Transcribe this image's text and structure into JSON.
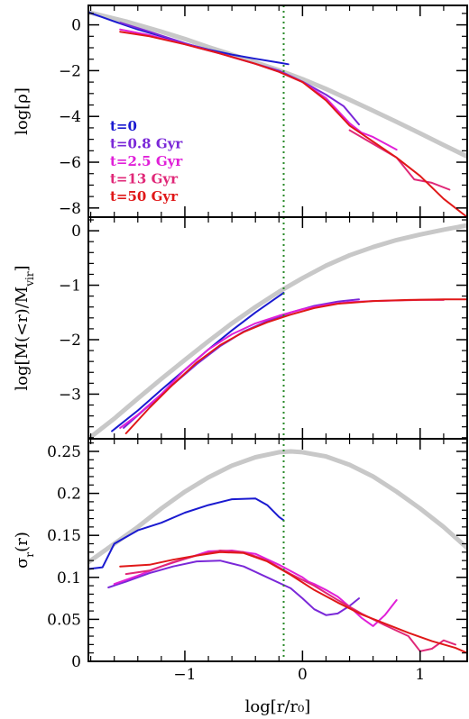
{
  "chart_data": [
    {
      "type": "line",
      "panel": "top",
      "ylabel": "log[ρ]",
      "xlabel": "",
      "xlim": [
        -1.82,
        1.4
      ],
      "ylim": [
        -8.4,
        0.85
      ],
      "xticks": [
        -1,
        0,
        1
      ],
      "xtick_labels": [
        "",
        "",
        ""
      ],
      "yticks": [
        0,
        -2,
        -4,
        -6,
        -8
      ],
      "ytick_labels": [
        "0",
        "−2",
        "−4",
        "−6",
        "−8"
      ],
      "vline_x": -0.16,
      "legend": {
        "position": "left-middle",
        "entries": [
          {
            "label": "t=0",
            "color": "#1a1ad0"
          },
          {
            "label": "t=0.8 Gyr",
            "color": "#7a28d8"
          },
          {
            "label": "t=2.5 Gyr",
            "color": "#e020d8"
          },
          {
            "label": "t=13 Gyr",
            "color": "#e02878"
          },
          {
            "label": "t=50 Gyr",
            "color": "#e01818"
          }
        ]
      },
      "series": [
        {
          "color": "#c8c8c8",
          "width": 5,
          "x": [
            -1.82,
            -1.5,
            -1.2,
            -1.0,
            -0.8,
            -0.6,
            -0.4,
            -0.2,
            0.0,
            0.2,
            0.4,
            0.6,
            0.8,
            1.0,
            1.2,
            1.4
          ],
          "y": [
            0.55,
            0.15,
            -0.3,
            -0.62,
            -0.97,
            -1.3,
            -1.64,
            -1.98,
            -2.37,
            -2.8,
            -3.27,
            -3.75,
            -4.24,
            -4.74,
            -5.25,
            -5.75
          ]
        },
        {
          "color": "#1a1ad0",
          "width": 2,
          "x": [
            -1.82,
            -1.6,
            -1.4,
            -1.2,
            -1.0,
            -0.8,
            -0.6,
            -0.4,
            -0.2,
            -0.12
          ],
          "y": [
            0.55,
            0.15,
            -0.2,
            -0.5,
            -0.82,
            -1.08,
            -1.3,
            -1.48,
            -1.65,
            -1.72
          ]
        },
        {
          "color": "#7a28d8",
          "width": 2,
          "x": [
            -1.55,
            -1.3,
            -1.0,
            -0.7,
            -0.4,
            -0.2,
            0.0,
            0.2,
            0.35,
            0.48
          ],
          "y": [
            0.1,
            -0.3,
            -0.8,
            -1.25,
            -1.7,
            -2.0,
            -2.48,
            -3.05,
            -3.55,
            -4.35
          ]
        },
        {
          "color": "#e020d8",
          "width": 2,
          "x": [
            -1.55,
            -1.3,
            -1.0,
            -0.7,
            -0.4,
            -0.2,
            0.0,
            0.2,
            0.4,
            0.5,
            0.6,
            0.8
          ],
          "y": [
            -0.2,
            -0.45,
            -0.85,
            -1.25,
            -1.7,
            -2.05,
            -2.5,
            -3.2,
            -4.3,
            -4.7,
            -4.9,
            -5.45
          ]
        },
        {
          "color": "#e02878",
          "width": 2,
          "x": [
            0.4,
            0.6,
            0.8,
            0.95,
            1.1,
            1.25
          ],
          "y": [
            -4.6,
            -5.2,
            -5.8,
            -6.75,
            -6.9,
            -7.2
          ]
        },
        {
          "color": "#e01818",
          "width": 2,
          "x": [
            -1.55,
            -1.3,
            -1.0,
            -0.7,
            -0.4,
            -0.2,
            0.0,
            0.2,
            0.4,
            0.6,
            0.8,
            1.0,
            1.2,
            1.4
          ],
          "y": [
            -0.3,
            -0.5,
            -0.85,
            -1.25,
            -1.7,
            -2.05,
            -2.5,
            -3.3,
            -4.4,
            -5.1,
            -5.8,
            -6.6,
            -7.6,
            -8.4
          ]
        }
      ]
    },
    {
      "type": "line",
      "panel": "middle",
      "ylabel": "log[M(<r)/M",
      "ylabel_sub": "vir",
      "ylabel_tail": "]",
      "xlabel": "",
      "xlim": [
        -1.82,
        1.4
      ],
      "ylim": [
        -3.82,
        0.25
      ],
      "xticks": [
        -1,
        0,
        1
      ],
      "xtick_labels": [
        "",
        "",
        ""
      ],
      "yticks": [
        0,
        -1,
        -2,
        -3
      ],
      "ytick_labels": [
        "0",
        "−1",
        "−2",
        "−3"
      ],
      "vline_x": -0.16,
      "series": [
        {
          "color": "#c8c8c8",
          "width": 5,
          "x": [
            -1.82,
            -1.6,
            -1.4,
            -1.2,
            -1.0,
            -0.8,
            -0.6,
            -0.4,
            -0.2,
            0.0,
            0.2,
            0.4,
            0.6,
            0.8,
            1.0,
            1.2,
            1.4
          ],
          "y": [
            -3.82,
            -3.45,
            -3.08,
            -2.72,
            -2.37,
            -2.03,
            -1.7,
            -1.4,
            -1.12,
            -0.87,
            -0.64,
            -0.45,
            -0.3,
            -0.17,
            -0.07,
            0.02,
            0.1
          ]
        },
        {
          "color": "#1a1ad0",
          "width": 2,
          "x": [
            -1.62,
            -1.4,
            -1.2,
            -1.0,
            -0.8,
            -0.6,
            -0.4,
            -0.2,
            -0.16
          ],
          "y": [
            -3.68,
            -3.3,
            -2.92,
            -2.55,
            -2.18,
            -1.83,
            -1.5,
            -1.2,
            -1.14
          ]
        },
        {
          "color": "#7a28d8",
          "width": 2,
          "x": [
            -1.52,
            -1.3,
            -1.1,
            -0.9,
            -0.7,
            -0.5,
            -0.3,
            -0.1,
            0.1,
            0.3,
            0.48
          ],
          "y": [
            -3.62,
            -3.2,
            -2.82,
            -2.45,
            -2.12,
            -1.85,
            -1.66,
            -1.5,
            -1.38,
            -1.3,
            -1.26
          ]
        },
        {
          "color": "#e020d8",
          "width": 2,
          "x": [
            -1.55,
            -1.4,
            -1.2,
            -1.0,
            -0.8,
            -0.6,
            -0.4,
            -0.2,
            0.0,
            0.2,
            0.4,
            0.6,
            0.8
          ],
          "y": [
            -3.62,
            -3.38,
            -3.0,
            -2.55,
            -2.18,
            -1.9,
            -1.7,
            -1.56,
            -1.44,
            -1.36,
            -1.31,
            -1.29,
            -1.28
          ]
        },
        {
          "color": "#e02878",
          "width": 2,
          "x": [
            0.8,
            1.0,
            1.2
          ],
          "y": [
            -1.28,
            -1.27,
            -1.27
          ]
        },
        {
          "color": "#e01818",
          "width": 2,
          "x": [
            -1.5,
            -1.3,
            -1.1,
            -0.9,
            -0.7,
            -0.5,
            -0.3,
            -0.1,
            0.1,
            0.3,
            0.6,
            0.9,
            1.2,
            1.4
          ],
          "y": [
            -3.72,
            -3.25,
            -2.82,
            -2.42,
            -2.1,
            -1.86,
            -1.68,
            -1.54,
            -1.42,
            -1.34,
            -1.29,
            -1.27,
            -1.26,
            -1.26
          ]
        }
      ]
    },
    {
      "type": "line",
      "panel": "bottom",
      "ylabel": "σ",
      "ylabel_sub": "r",
      "ylabel_tail": "(r)",
      "xlabel": "log[r/r₀]",
      "xlim": [
        -1.82,
        1.4
      ],
      "ylim": [
        0,
        0.265
      ],
      "xticks": [
        -1,
        0,
        1
      ],
      "xtick_labels": [
        "−1",
        "0",
        "1"
      ],
      "yticks": [
        0,
        0.05,
        0.1,
        0.15,
        0.2,
        0.25
      ],
      "ytick_labels": [
        "0",
        "0.05",
        "0.1",
        "0.15",
        "0.2",
        "0.25"
      ],
      "vline_x": -0.16,
      "series": [
        {
          "color": "#c8c8c8",
          "width": 5,
          "x": [
            -1.82,
            -1.6,
            -1.4,
            -1.2,
            -1.0,
            -0.8,
            -0.6,
            -0.4,
            -0.2,
            -0.1,
            0.0,
            0.2,
            0.4,
            0.6,
            0.8,
            1.0,
            1.2,
            1.4
          ],
          "y": [
            0.118,
            0.14,
            0.16,
            0.182,
            0.202,
            0.219,
            0.233,
            0.243,
            0.249,
            0.25,
            0.249,
            0.244,
            0.234,
            0.22,
            0.202,
            0.182,
            0.16,
            0.135
          ]
        },
        {
          "color": "#1a1ad0",
          "width": 2,
          "x": [
            -1.82,
            -1.7,
            -1.6,
            -1.4,
            -1.2,
            -1.0,
            -0.8,
            -0.6,
            -0.4,
            -0.3,
            -0.2,
            -0.16
          ],
          "y": [
            0.11,
            0.112,
            0.14,
            0.156,
            0.165,
            0.177,
            0.186,
            0.193,
            0.194,
            0.186,
            0.172,
            0.168
          ]
        },
        {
          "color": "#7a28d8",
          "width": 2,
          "x": [
            -1.65,
            -1.5,
            -1.3,
            -1.1,
            -0.9,
            -0.7,
            -0.5,
            -0.3,
            -0.1,
            0.0,
            0.1,
            0.2,
            0.3,
            0.4,
            0.48
          ],
          "y": [
            0.088,
            0.095,
            0.105,
            0.113,
            0.119,
            0.12,
            0.113,
            0.1,
            0.087,
            0.075,
            0.062,
            0.055,
            0.057,
            0.066,
            0.075
          ]
        },
        {
          "color": "#e020d8",
          "width": 2,
          "x": [
            -1.6,
            -1.4,
            -1.2,
            -1.0,
            -0.8,
            -0.6,
            -0.4,
            -0.2,
            0.0,
            0.05,
            0.1,
            0.2,
            0.3,
            0.4,
            0.5,
            0.6,
            0.7,
            0.8
          ],
          "y": [
            0.092,
            0.102,
            0.113,
            0.122,
            0.131,
            0.132,
            0.128,
            0.115,
            0.1,
            0.095,
            0.092,
            0.085,
            0.077,
            0.065,
            0.052,
            0.042,
            0.055,
            0.073
          ]
        },
        {
          "color": "#e02878",
          "width": 2,
          "x": [
            -1.5,
            -1.3,
            -1.1,
            -0.9,
            -0.7,
            -0.5,
            -0.3,
            -0.1,
            0.1,
            0.3,
            0.5,
            0.7,
            0.9,
            1.0,
            1.1,
            1.2,
            1.3
          ],
          "y": [
            0.104,
            0.108,
            0.118,
            0.126,
            0.132,
            0.13,
            0.12,
            0.104,
            0.09,
            0.073,
            0.057,
            0.043,
            0.03,
            0.012,
            0.015,
            0.025,
            0.02
          ]
        },
        {
          "color": "#e01818",
          "width": 2,
          "x": [
            -1.55,
            -1.3,
            -1.1,
            -0.9,
            -0.7,
            -0.5,
            -0.3,
            -0.1,
            0.1,
            0.3,
            0.5,
            0.7,
            0.9,
            1.1,
            1.3,
            1.4
          ],
          "y": [
            0.113,
            0.115,
            0.121,
            0.126,
            0.13,
            0.129,
            0.119,
            0.103,
            0.085,
            0.07,
            0.056,
            0.045,
            0.034,
            0.024,
            0.016,
            0.01
          ]
        }
      ]
    }
  ]
}
